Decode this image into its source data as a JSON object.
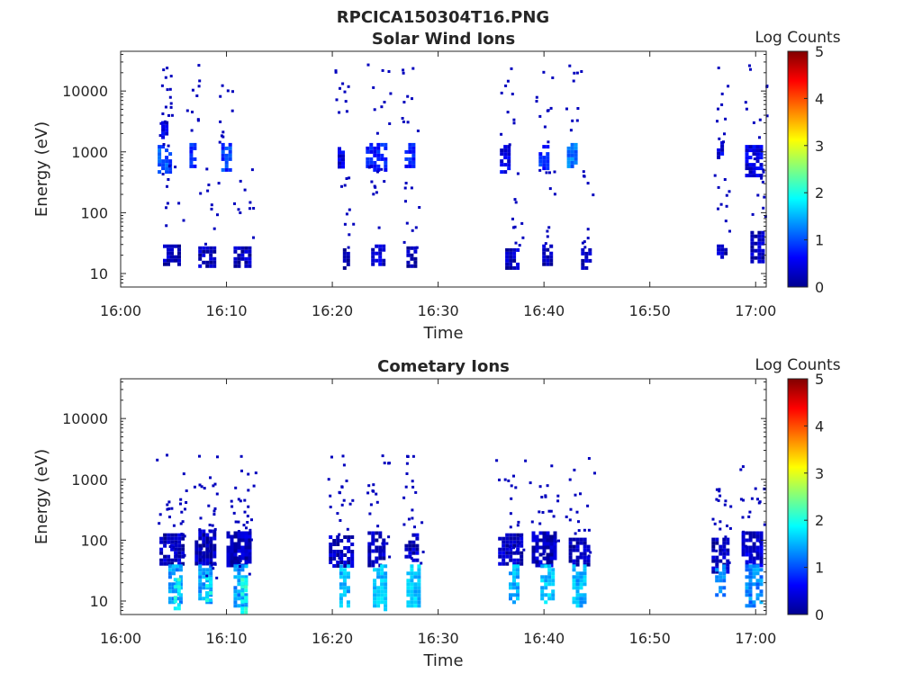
{
  "figure": {
    "title": "RPCICA150304T16.PNG"
  },
  "chart_data": [
    {
      "type": "heatmap",
      "title": "Solar Wind Ions",
      "xlabel": "Time",
      "ylabel": "Energy (eV)",
      "y_scale": "log",
      "ylim": [
        6,
        45000
      ],
      "xlim": [
        "16:00",
        "17:01"
      ],
      "x_ticks": [
        "16:00",
        "16:10",
        "16:20",
        "16:30",
        "16:40",
        "16:50",
        "17:00"
      ],
      "y_ticks": [
        "10",
        "100",
        "1000",
        "10000"
      ],
      "colorbar": {
        "label": "Log Counts",
        "min": 0,
        "max": 5,
        "ticks": [
          "0",
          "1",
          "2",
          "3",
          "4",
          "5"
        ],
        "colormap": "jet"
      },
      "blocks": [
        {
          "t0": "16:03:30",
          "t1": "16:04:40",
          "e0": 500,
          "e1": 1300,
          "log_counts": 1.0
        },
        {
          "t0": "16:03:50",
          "t1": "16:04:30",
          "e0": 1500,
          "e1": 3200,
          "log_counts": 0.5
        },
        {
          "t0": "16:04:00",
          "t1": "16:05:40",
          "e0": 14,
          "e1": 30,
          "log_counts": 0.3
        },
        {
          "t0": "16:06:30",
          "t1": "16:07:00",
          "e0": 600,
          "e1": 1400,
          "log_counts": 0.9
        },
        {
          "t0": "16:07:20",
          "t1": "16:08:50",
          "e0": 14,
          "e1": 28,
          "log_counts": 0.3
        },
        {
          "t0": "16:09:30",
          "t1": "16:10:20",
          "e0": 500,
          "e1": 1400,
          "log_counts": 0.9
        },
        {
          "t0": "16:10:40",
          "t1": "16:12:10",
          "e0": 14,
          "e1": 28,
          "log_counts": 0.3
        },
        {
          "t0": "16:20:30",
          "t1": "16:21:10",
          "e0": 550,
          "e1": 1200,
          "log_counts": 0.5
        },
        {
          "t0": "16:21:00",
          "t1": "16:21:40",
          "e0": 12,
          "e1": 26,
          "log_counts": 0.3
        },
        {
          "t0": "16:23:10",
          "t1": "16:25:10",
          "e0": 500,
          "e1": 1400,
          "log_counts": 0.7
        },
        {
          "t0": "16:23:40",
          "t1": "16:25:00",
          "e0": 14,
          "e1": 30,
          "log_counts": 0.4
        },
        {
          "t0": "16:26:50",
          "t1": "16:27:50",
          "e0": 550,
          "e1": 1400,
          "log_counts": 0.8
        },
        {
          "t0": "16:27:00",
          "t1": "16:28:00",
          "e0": 14,
          "e1": 28,
          "log_counts": 0.3
        },
        {
          "t0": "16:35:50",
          "t1": "16:36:50",
          "e0": 500,
          "e1": 1300,
          "log_counts": 0.5
        },
        {
          "t0": "16:36:20",
          "t1": "16:37:40",
          "e0": 12,
          "e1": 26,
          "log_counts": 0.3
        },
        {
          "t0": "16:39:30",
          "t1": "16:40:30",
          "e0": 550,
          "e1": 1300,
          "log_counts": 0.8
        },
        {
          "t0": "16:39:50",
          "t1": "16:40:50",
          "e0": 14,
          "e1": 30,
          "log_counts": 0.3
        },
        {
          "t0": "16:42:10",
          "t1": "16:43:10",
          "e0": 600,
          "e1": 1400,
          "log_counts": 1.2
        },
        {
          "t0": "16:43:30",
          "t1": "16:44:30",
          "e0": 12,
          "e1": 26,
          "log_counts": 0.3
        },
        {
          "t0": "16:56:20",
          "t1": "16:57:00",
          "e0": 800,
          "e1": 1500,
          "log_counts": 0.5
        },
        {
          "t0": "16:56:20",
          "t1": "16:57:10",
          "e0": 18,
          "e1": 30,
          "log_counts": 0.3
        },
        {
          "t0": "16:59:00",
          "t1": "17:00:40",
          "e0": 400,
          "e1": 1300,
          "log_counts": 0.5
        },
        {
          "t0": "16:59:30",
          "t1": "17:00:40",
          "e0": 15,
          "e1": 50,
          "log_counts": 0.3
        }
      ]
    },
    {
      "type": "heatmap",
      "title": "Cometary Ions",
      "xlabel": "Time",
      "ylabel": "Energy (eV)",
      "y_scale": "log",
      "ylim": [
        6,
        45000
      ],
      "xlim": [
        "16:00",
        "17:01"
      ],
      "x_ticks": [
        "16:00",
        "16:10",
        "16:20",
        "16:30",
        "16:40",
        "16:50",
        "17:00"
      ],
      "y_ticks": [
        "10",
        "100",
        "1000",
        "10000"
      ],
      "colorbar": {
        "label": "Log Counts",
        "min": 0,
        "max": 5,
        "ticks": [
          "0",
          "1",
          "2",
          "3",
          "4",
          "5"
        ],
        "colormap": "jet"
      },
      "blocks": [
        {
          "t0": "16:03:40",
          "t1": "16:06:00",
          "e0": 40,
          "e1": 130,
          "log_counts": 0.3
        },
        {
          "t0": "16:04:30",
          "t1": "16:05:50",
          "e0": 9,
          "e1": 40,
          "log_counts": 1.4
        },
        {
          "t0": "16:05:00",
          "t1": "16:05:40",
          "e0": 8,
          "e1": 24,
          "log_counts": 2.0
        },
        {
          "t0": "16:07:00",
          "t1": "16:08:50",
          "e0": 40,
          "e1": 150,
          "log_counts": 0.3
        },
        {
          "t0": "16:07:20",
          "t1": "16:08:40",
          "e0": 10,
          "e1": 40,
          "log_counts": 1.4
        },
        {
          "t0": "16:08:00",
          "t1": "16:08:40",
          "e0": 10,
          "e1": 25,
          "log_counts": 1.9
        },
        {
          "t0": "16:10:00",
          "t1": "16:12:20",
          "e0": 40,
          "e1": 140,
          "log_counts": 0.3
        },
        {
          "t0": "16:10:40",
          "t1": "16:12:00",
          "e0": 8,
          "e1": 40,
          "log_counts": 1.4
        },
        {
          "t0": "16:11:20",
          "t1": "16:12:00",
          "e0": 7,
          "e1": 24,
          "log_counts": 2.0
        },
        {
          "t0": "16:19:40",
          "t1": "16:22:00",
          "e0": 40,
          "e1": 120,
          "log_counts": 0.3
        },
        {
          "t0": "16:20:40",
          "t1": "16:21:40",
          "e0": 8,
          "e1": 40,
          "log_counts": 1.5
        },
        {
          "t0": "16:23:20",
          "t1": "16:25:00",
          "e0": 40,
          "e1": 140,
          "log_counts": 0.3
        },
        {
          "t0": "16:23:50",
          "t1": "16:25:00",
          "e0": 7,
          "e1": 40,
          "log_counts": 1.6
        },
        {
          "t0": "16:26:50",
          "t1": "16:28:00",
          "e0": 40,
          "e1": 130,
          "log_counts": 0.3
        },
        {
          "t0": "16:27:00",
          "t1": "16:28:10",
          "e0": 8,
          "e1": 40,
          "log_counts": 1.6
        },
        {
          "t0": "16:35:40",
          "t1": "16:38:00",
          "e0": 40,
          "e1": 130,
          "log_counts": 0.3
        },
        {
          "t0": "16:36:40",
          "t1": "16:37:40",
          "e0": 9,
          "e1": 40,
          "log_counts": 1.5
        },
        {
          "t0": "16:38:50",
          "t1": "16:41:00",
          "e0": 40,
          "e1": 140,
          "log_counts": 0.3
        },
        {
          "t0": "16:39:40",
          "t1": "16:41:00",
          "e0": 9,
          "e1": 40,
          "log_counts": 1.6
        },
        {
          "t0": "16:42:20",
          "t1": "16:44:20",
          "e0": 40,
          "e1": 110,
          "log_counts": 0.3
        },
        {
          "t0": "16:42:40",
          "t1": "16:44:00",
          "e0": 8,
          "e1": 40,
          "log_counts": 1.5
        },
        {
          "t0": "16:55:50",
          "t1": "16:57:30",
          "e0": 30,
          "e1": 110,
          "log_counts": 0.3
        },
        {
          "t0": "16:56:10",
          "t1": "16:57:10",
          "e0": 12,
          "e1": 40,
          "log_counts": 1.3
        },
        {
          "t0": "16:58:40",
          "t1": "17:00:40",
          "e0": 40,
          "e1": 140,
          "log_counts": 0.4
        },
        {
          "t0": "16:59:00",
          "t1": "17:00:40",
          "e0": 8,
          "e1": 40,
          "log_counts": 1.3
        }
      ]
    }
  ]
}
